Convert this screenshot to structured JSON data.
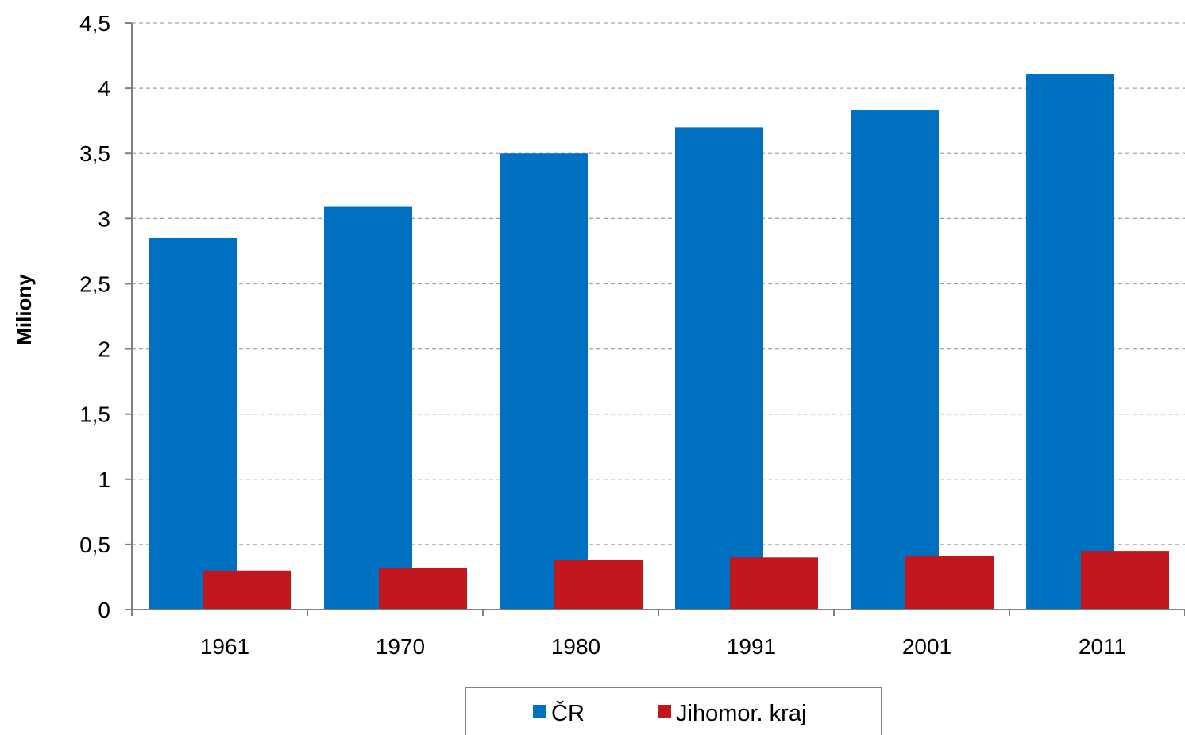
{
  "chart_data": {
    "type": "bar",
    "ylabel": "Miliony",
    "xlabel": "",
    "categories": [
      "1961",
      "1970",
      "1980",
      "1991",
      "2001",
      "2011"
    ],
    "series": [
      {
        "name": "ČR",
        "color": "#0070c0",
        "values": [
          2.85,
          3.09,
          3.5,
          3.7,
          3.83,
          4.11
        ]
      },
      {
        "name": "Jihomor. kraj",
        "color": "#c0171f",
        "values": [
          0.3,
          0.32,
          0.38,
          0.4,
          0.41,
          0.45
        ]
      }
    ],
    "ylim": [
      0,
      4.5
    ],
    "yticks": [
      {
        "value": 0,
        "label": "0"
      },
      {
        "value": 0.5,
        "label": "0,5"
      },
      {
        "value": 1,
        "label": "1"
      },
      {
        "value": 1.5,
        "label": "1,5"
      },
      {
        "value": 2,
        "label": "2"
      },
      {
        "value": 2.5,
        "label": "2,5"
      },
      {
        "value": 3,
        "label": "3"
      },
      {
        "value": 3.5,
        "label": "3,5"
      },
      {
        "value": 4,
        "label": "4"
      },
      {
        "value": 4.5,
        "label": "4,5"
      }
    ],
    "grid": true,
    "legend_position": "bottom-center"
  }
}
